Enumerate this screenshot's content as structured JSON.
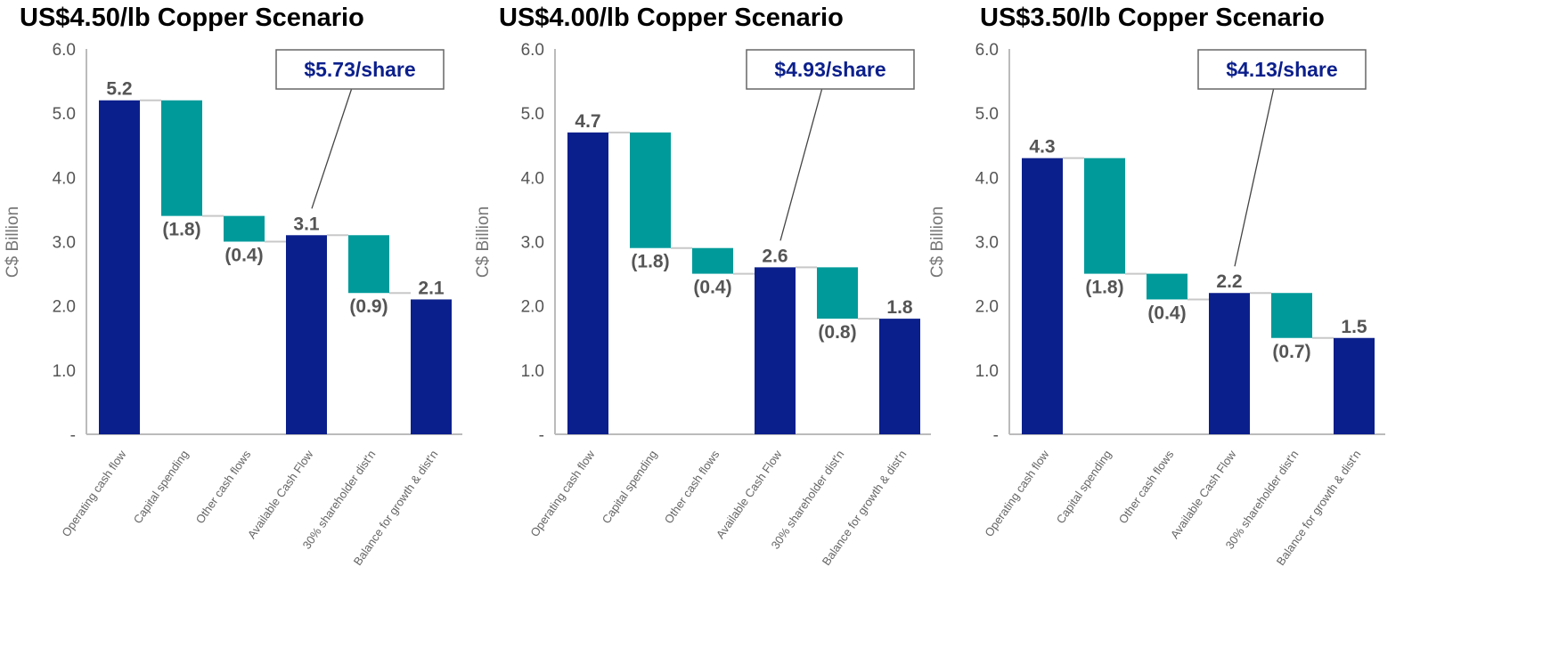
{
  "chart_data": [
    {
      "type": "bar",
      "title": "US$4.50/lb Copper Scenario",
      "ylabel": "C$ Billion",
      "ylim": [
        0,
        6
      ],
      "yticks": [
        "-",
        "1.0",
        "2.0",
        "3.0",
        "4.0",
        "5.0",
        "6.0"
      ],
      "categories": [
        "Operating cash flow",
        "Capital spending",
        "Other cash flows",
        "Available Cash Flow",
        "30% shareholder dist'n",
        "Balance for growth & dist'n"
      ],
      "values": [
        5.2,
        -1.8,
        -0.4,
        3.1,
        -0.9,
        2.1
      ],
      "bar_kinds": [
        "total",
        "delta",
        "delta",
        "total",
        "delta",
        "total"
      ],
      "value_labels": [
        "5.2",
        "(1.8)",
        "(0.4)",
        "3.1",
        "(0.9)",
        "2.1"
      ],
      "annotation": "$5.73/share",
      "colors": {
        "total": "#0b1f8c",
        "delta": "#009a9a"
      },
      "grid": false
    },
    {
      "type": "bar",
      "title": "US$4.00/lb Copper Scenario",
      "ylabel": "C$ Billion",
      "ylim": [
        0,
        6
      ],
      "yticks": [
        "-",
        "1.0",
        "2.0",
        "3.0",
        "4.0",
        "5.0",
        "6.0"
      ],
      "categories": [
        "Operating cash flow",
        "Capital spending",
        "Other cash flows",
        "Available Cash Flow",
        "30% shareholder dist'n",
        "Balance for growth & dist'n"
      ],
      "values": [
        4.7,
        -1.8,
        -0.4,
        2.6,
        -0.8,
        1.8
      ],
      "bar_kinds": [
        "total",
        "delta",
        "delta",
        "total",
        "delta",
        "total"
      ],
      "value_labels": [
        "4.7",
        "(1.8)",
        "(0.4)",
        "2.6",
        "(0.8)",
        "1.8"
      ],
      "annotation": "$4.93/share",
      "colors": {
        "total": "#0b1f8c",
        "delta": "#009a9a"
      },
      "grid": false
    },
    {
      "type": "bar",
      "title": "US$3.50/lb Copper Scenario",
      "ylabel": "C$ Billion",
      "ylim": [
        0,
        6
      ],
      "yticks": [
        "-",
        "1.0",
        "2.0",
        "3.0",
        "4.0",
        "5.0",
        "6.0"
      ],
      "categories": [
        "Operating cash flow",
        "Capital spending",
        "Other cash flows",
        "Available Cash Flow",
        "30% shareholder dist'n",
        "Balance for growth & dist'n"
      ],
      "values": [
        4.3,
        -1.8,
        -0.4,
        2.2,
        -0.7,
        1.5
      ],
      "bar_kinds": [
        "total",
        "delta",
        "delta",
        "total",
        "delta",
        "total"
      ],
      "value_labels": [
        "4.3",
        "(1.8)",
        "(0.4)",
        "2.2",
        "(0.7)",
        "1.5"
      ],
      "annotation": "$4.13/share",
      "colors": {
        "total": "#0b1f8c",
        "delta": "#009a9a"
      },
      "grid": false
    }
  ]
}
